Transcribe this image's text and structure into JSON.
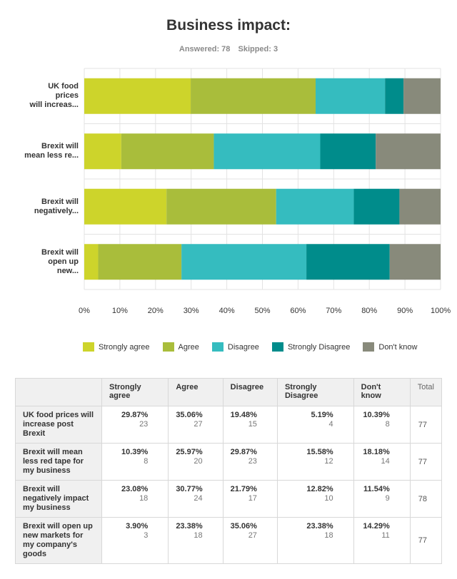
{
  "title": "Business impact:",
  "answered_label": "Answered: 78",
  "skipped_label": "Skipped: 3",
  "colors": {
    "strongly_agree": "#cdd42b",
    "agree": "#a9bd3b",
    "disagree": "#35bcbf",
    "strongly_disagree": "#008c8b",
    "dont_know": "#888a7b"
  },
  "chart_data": {
    "type": "bar",
    "orientation": "horizontal",
    "stacked": true,
    "title": "Business impact:",
    "categories": [
      [
        "UK food",
        "prices",
        "will increas..."
      ],
      [
        "Brexit will",
        "mean less re..."
      ],
      [
        "Brexit will",
        "negatively..."
      ],
      [
        "Brexit will",
        "open up",
        "new..."
      ]
    ],
    "series": [
      {
        "name": "Strongly agree",
        "color": "#cdd42b",
        "values": [
          29.87,
          10.39,
          23.08,
          3.9
        ]
      },
      {
        "name": "Agree",
        "color": "#a9bd3b",
        "values": [
          35.06,
          25.97,
          30.77,
          23.38
        ]
      },
      {
        "name": "Disagree",
        "color": "#35bcbf",
        "values": [
          19.48,
          29.87,
          21.79,
          35.06
        ]
      },
      {
        "name": "Strongly Disagree",
        "color": "#008c8b",
        "values": [
          5.19,
          15.58,
          12.82,
          23.38
        ]
      },
      {
        "name": "Don't know",
        "color": "#888a7b",
        "values": [
          10.39,
          18.18,
          11.54,
          14.29
        ]
      }
    ],
    "xlim": [
      0,
      100
    ],
    "xticks": [
      "0%",
      "10%",
      "20%",
      "30%",
      "40%",
      "50%",
      "60%",
      "70%",
      "80%",
      "90%",
      "100%"
    ],
    "legend_position": "bottom",
    "grid": true
  },
  "table": {
    "headers": [
      "Strongly agree",
      "Agree",
      "Disagree",
      "Strongly Disagree",
      "Don't know",
      "Total"
    ],
    "rows": [
      {
        "label": "UK food prices will increase post Brexit",
        "cells": [
          [
            "29.87%",
            "23"
          ],
          [
            "35.06%",
            "27"
          ],
          [
            "19.48%",
            "15"
          ],
          [
            "5.19%",
            "4"
          ],
          [
            "10.39%",
            "8"
          ]
        ],
        "total": "77"
      },
      {
        "label": "Brexit will mean less red tape for my business",
        "cells": [
          [
            "10.39%",
            "8"
          ],
          [
            "25.97%",
            "20"
          ],
          [
            "29.87%",
            "23"
          ],
          [
            "15.58%",
            "12"
          ],
          [
            "18.18%",
            "14"
          ]
        ],
        "total": "77"
      },
      {
        "label": "Brexit will negatively impact my business",
        "cells": [
          [
            "23.08%",
            "18"
          ],
          [
            "30.77%",
            "24"
          ],
          [
            "21.79%",
            "17"
          ],
          [
            "12.82%",
            "10"
          ],
          [
            "11.54%",
            "9"
          ]
        ],
        "total": "78"
      },
      {
        "label": "Brexit will open up new markets for my company's goods",
        "cells": [
          [
            "3.90%",
            "3"
          ],
          [
            "23.38%",
            "18"
          ],
          [
            "35.06%",
            "27"
          ],
          [
            "23.38%",
            "18"
          ],
          [
            "14.29%",
            "11"
          ]
        ],
        "total": "77"
      }
    ]
  }
}
